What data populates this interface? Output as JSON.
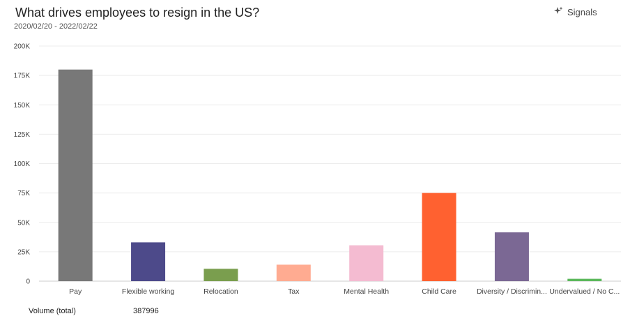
{
  "header": {
    "title": "What drives employees to resign in the US?",
    "date_range": "2020/02/20 - 2022/02/22",
    "signals_label": "Signals",
    "signals_icon": "sparkle-icon"
  },
  "footer": {
    "volume_label": "Volume (total)",
    "volume_value": "387996"
  },
  "chart_data": {
    "type": "bar",
    "title": "What drives employees to resign in the US?",
    "xlabel": "",
    "ylabel": "",
    "ylim": [
      0,
      200000
    ],
    "yticks": [
      0,
      25000,
      50000,
      75000,
      100000,
      125000,
      150000,
      175000,
      200000
    ],
    "ytick_labels": [
      "0",
      "25K",
      "50K",
      "75K",
      "100K",
      "125K",
      "150K",
      "175K",
      "200K"
    ],
    "grid": true,
    "categories": [
      "Pay",
      "Flexible working",
      "Relocation",
      "Tax",
      "Mental Health",
      "Child Care",
      "Diversity / Discrimin...",
      "Undervalued / No C..."
    ],
    "values": [
      180000,
      33000,
      10500,
      14000,
      30500,
      75000,
      41500,
      2000
    ],
    "colors": [
      "#787878",
      "#4d4a8a",
      "#7a9e4e",
      "#ffab91",
      "#f4bbd1",
      "#ff6130",
      "#7b6894",
      "#5cb85c"
    ]
  }
}
